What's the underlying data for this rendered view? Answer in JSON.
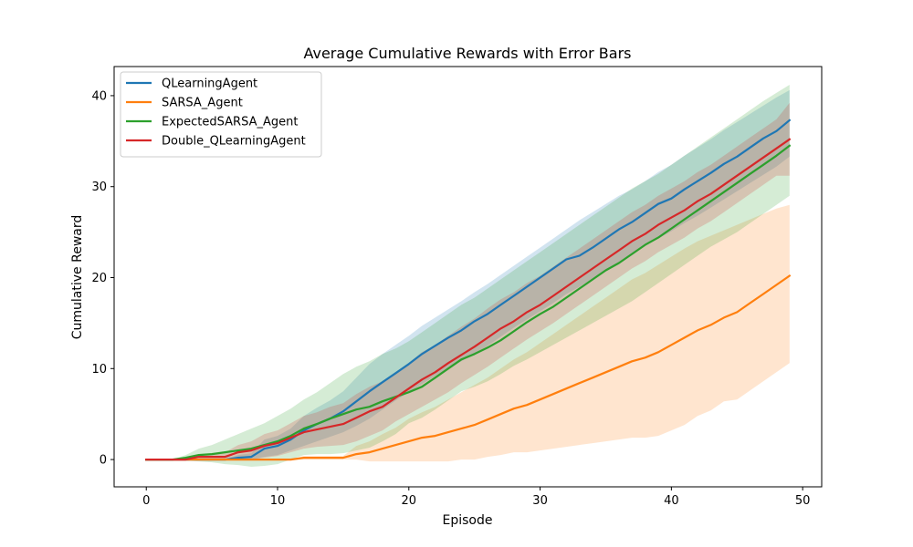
{
  "chart_data": {
    "type": "line",
    "title": "Average Cumulative Rewards with Error Bars",
    "xlabel": "Episode",
    "ylabel": "Cumulative Reward",
    "xlim": [
      -2.45,
      51.45
    ],
    "ylim": [
      -3.0,
      43.2
    ],
    "xticks": [
      0,
      10,
      20,
      30,
      40,
      50
    ],
    "yticks": [
      0,
      10,
      20,
      30,
      40
    ],
    "grid": false,
    "legend_position": "upper-left",
    "x": [
      0,
      1,
      2,
      3,
      4,
      5,
      6,
      7,
      8,
      9,
      10,
      11,
      12,
      13,
      14,
      15,
      16,
      17,
      18,
      19,
      20,
      21,
      22,
      23,
      24,
      25,
      26,
      27,
      28,
      29,
      30,
      31,
      32,
      33,
      34,
      35,
      36,
      37,
      38,
      39,
      40,
      41,
      42,
      43,
      44,
      45,
      46,
      47,
      48,
      49
    ],
    "series": [
      {
        "name": "QLearningAgent",
        "color": "#1f77b4",
        "values": [
          0,
          0,
          0,
          0,
          0,
          0,
          0,
          0.2,
          0.3,
          1.2,
          1.5,
          2.2,
          3.2,
          3.9,
          4.5,
          5.3,
          6.4,
          7.5,
          8.5,
          9.5,
          10.5,
          11.6,
          12.5,
          13.4,
          14.2,
          15.2,
          16.0,
          17.0,
          18.0,
          19.0,
          20.0,
          21.0,
          22.0,
          22.4,
          23.3,
          24.3,
          25.3,
          26.1,
          27.1,
          28.1,
          28.7,
          29.7,
          30.6,
          31.5,
          32.5,
          33.3,
          34.3,
          35.3,
          36.1,
          37.3
        ],
        "lower": [
          0,
          0,
          0,
          0,
          0,
          0,
          0,
          0,
          0,
          0.3,
          0.5,
          1.0,
          1.5,
          2.0,
          2.5,
          3.0,
          3.7,
          4.5,
          5.5,
          6.5,
          7.4,
          8.3,
          9.2,
          10.0,
          10.8,
          11.6,
          12.5,
          13.5,
          14.5,
          15.4,
          16.3,
          17.2,
          18.2,
          19.0,
          19.9,
          20.8,
          21.7,
          22.6,
          23.5,
          24.3,
          25.1,
          26.0,
          26.8,
          27.7,
          28.6,
          29.5,
          30.4,
          31.3,
          32.2,
          33.3
        ],
        "upper": [
          0,
          0,
          0,
          0,
          0,
          0,
          0,
          0.5,
          0.7,
          2.2,
          2.6,
          3.4,
          4.8,
          5.7,
          6.5,
          7.5,
          9.0,
          10.5,
          11.6,
          12.6,
          13.6,
          14.7,
          15.6,
          16.5,
          17.4,
          18.4,
          19.3,
          20.3,
          21.3,
          22.3,
          23.3,
          24.3,
          25.3,
          26.3,
          27.2,
          28.1,
          29.0,
          29.7,
          30.6,
          31.6,
          32.4,
          33.4,
          34.3,
          35.2,
          36.2,
          37.1,
          38.0,
          38.9,
          39.8,
          40.6
        ]
      },
      {
        "name": "SARSA_Agent",
        "color": "#ff7f0e",
        "values": [
          0,
          0,
          0,
          0,
          0,
          0,
          0,
          0,
          0,
          0,
          0,
          0,
          0.2,
          0.2,
          0.2,
          0.2,
          0.6,
          0.8,
          1.2,
          1.6,
          2.0,
          2.4,
          2.6,
          3.0,
          3.4,
          3.8,
          4.4,
          5.0,
          5.6,
          6.0,
          6.6,
          7.2,
          7.8,
          8.4,
          9.0,
          9.6,
          10.2,
          10.8,
          11.2,
          11.8,
          12.6,
          13.4,
          14.2,
          14.8,
          15.6,
          16.2,
          17.2,
          18.2,
          19.2,
          20.2
        ],
        "lower": [
          0,
          0,
          0,
          0,
          0,
          0,
          0,
          0,
          0,
          0,
          0,
          0,
          0,
          0,
          0,
          0,
          0,
          -0.2,
          -0.2,
          -0.2,
          -0.2,
          -0.2,
          -0.2,
          -0.2,
          0,
          0,
          0.3,
          0.5,
          0.8,
          0.8,
          1.0,
          1.2,
          1.4,
          1.6,
          1.8,
          2.0,
          2.2,
          2.4,
          2.4,
          2.6,
          3.2,
          3.8,
          4.8,
          5.4,
          6.4,
          6.6,
          7.6,
          8.6,
          9.6,
          10.6
        ],
        "upper": [
          0,
          0,
          0,
          0,
          0,
          0,
          0,
          0,
          0,
          0,
          0,
          0,
          0.4,
          0.4,
          0.4,
          0.4,
          1.5,
          2.0,
          2.8,
          3.5,
          4.5,
          5.2,
          5.8,
          6.6,
          7.4,
          8.2,
          9.0,
          10.0,
          11.0,
          11.8,
          12.8,
          13.8,
          14.8,
          15.8,
          16.8,
          17.8,
          18.8,
          19.8,
          20.5,
          21.4,
          22.3,
          23.2,
          24.0,
          24.6,
          25.2,
          25.8,
          26.4,
          27.0,
          27.6,
          28.0
        ]
      },
      {
        "name": "ExpectedSARSA_Agent",
        "color": "#2ca02c",
        "values": [
          0,
          0,
          0,
          0.2,
          0.5,
          0.6,
          0.8,
          1.0,
          1.2,
          1.6,
          2.0,
          2.6,
          3.4,
          3.9,
          4.5,
          5.0,
          5.5,
          5.8,
          6.4,
          6.9,
          7.4,
          8.0,
          9.0,
          10.0,
          11.0,
          11.6,
          12.3,
          13.1,
          14.1,
          15.1,
          16.0,
          16.8,
          17.8,
          18.8,
          19.8,
          20.8,
          21.6,
          22.6,
          23.6,
          24.4,
          25.4,
          26.4,
          27.4,
          28.4,
          29.4,
          30.4,
          31.4,
          32.4,
          33.4,
          34.5
        ],
        "lower": [
          0,
          0,
          0,
          -0.1,
          -0.2,
          -0.3,
          -0.5,
          -0.6,
          -0.8,
          -0.7,
          -0.5,
          0,
          0.5,
          0.6,
          0.6,
          0.7,
          1.0,
          1.3,
          2.0,
          2.8,
          4.0,
          4.6,
          5.5,
          6.5,
          7.5,
          8.0,
          8.6,
          9.4,
          10.3,
          11.0,
          11.8,
          12.6,
          13.4,
          14.2,
          15.0,
          15.8,
          16.6,
          17.4,
          18.4,
          19.4,
          20.4,
          21.4,
          22.4,
          23.4,
          24.2,
          25.0,
          26.0,
          27.0,
          28.0,
          29.0
        ],
        "upper": [
          0,
          0,
          0,
          0.5,
          1.2,
          1.6,
          2.2,
          2.8,
          3.4,
          4.0,
          4.8,
          5.6,
          6.6,
          7.4,
          8.4,
          9.4,
          10.2,
          10.8,
          11.6,
          12.2,
          13.0,
          14.0,
          15.0,
          16.0,
          17.0,
          17.8,
          18.8,
          19.8,
          20.8,
          21.8,
          22.8,
          23.8,
          24.8,
          25.8,
          26.8,
          27.8,
          28.8,
          29.8,
          30.6,
          31.4,
          32.4,
          33.4,
          34.4,
          35.4,
          36.4,
          37.4,
          38.4,
          39.4,
          40.3,
          41.2
        ]
      },
      {
        "name": "Double_QLearningAgent",
        "color": "#d62728",
        "values": [
          0,
          0,
          0,
          0,
          0.3,
          0.3,
          0.3,
          0.8,
          1.0,
          1.5,
          1.8,
          2.4,
          3.0,
          3.3,
          3.6,
          3.9,
          4.6,
          5.3,
          5.8,
          6.8,
          7.8,
          8.8,
          9.6,
          10.6,
          11.5,
          12.4,
          13.4,
          14.4,
          15.2,
          16.2,
          17.0,
          18.0,
          19.0,
          20.0,
          21.0,
          22.0,
          23.0,
          24.0,
          24.8,
          25.8,
          26.6,
          27.4,
          28.4,
          29.2,
          30.2,
          31.2,
          32.2,
          33.2,
          34.2,
          35.2
        ],
        "lower": [
          0,
          0,
          0,
          0,
          0,
          0,
          0,
          0,
          0,
          0.2,
          0.4,
          0.8,
          1.2,
          1.4,
          1.5,
          1.6,
          2.0,
          2.6,
          3.2,
          4.2,
          5.0,
          5.8,
          6.6,
          7.4,
          8.4,
          9.3,
          10.2,
          11.2,
          12.2,
          13.2,
          14.1,
          15.0,
          16.0,
          17.0,
          18.0,
          19.0,
          20.0,
          21.0,
          21.8,
          22.8,
          23.6,
          24.4,
          25.4,
          26.2,
          27.2,
          28.2,
          29.2,
          30.2,
          31.2,
          31.2
        ],
        "upper": [
          0,
          0,
          0,
          0,
          0.6,
          0.6,
          0.8,
          1.6,
          2.0,
          2.8,
          3.2,
          4.0,
          4.8,
          5.2,
          5.8,
          6.2,
          7.2,
          8.0,
          8.6,
          9.6,
          10.6,
          11.8,
          12.6,
          13.6,
          14.6,
          15.5,
          16.6,
          17.6,
          18.4,
          19.4,
          20.2,
          21.2,
          22.2,
          23.2,
          24.2,
          25.2,
          26.2,
          27.2,
          28.0,
          29.0,
          29.8,
          30.6,
          31.6,
          32.4,
          33.4,
          34.4,
          35.4,
          36.4,
          37.4,
          39.2
        ]
      }
    ]
  }
}
